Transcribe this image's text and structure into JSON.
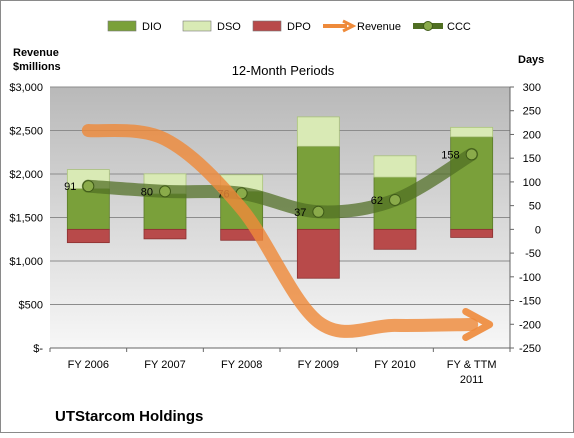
{
  "chart_data": {
    "type": "bar",
    "title": "12-Month Periods",
    "company": "UTStarcom Holdings",
    "left_axis_label_line1": "Revenue",
    "left_axis_label_line2": "$millions",
    "right_axis_label": "Days",
    "categories": [
      "FY 2006",
      "FY 2007",
      "FY 2008",
      "FY 2009",
      "FY 2010",
      "FY & TTM 2011"
    ],
    "left_ylim": [
      0,
      3000
    ],
    "left_ticks": [
      0,
      500,
      1000,
      1500,
      2000,
      2500,
      3000
    ],
    "left_tick_labels": [
      "$-",
      "$500",
      "$1,000",
      "$1,500",
      "$2,000",
      "$2,500",
      "$3,000"
    ],
    "right_ylim": [
      -250,
      300
    ],
    "right_ticks": [
      300,
      250,
      200,
      150,
      100,
      50,
      0,
      -50,
      -100,
      -150,
      -200,
      -250
    ],
    "right_tick_labels": [
      "300",
      "250",
      "200",
      "150",
      "100",
      "50",
      "0",
      "-50",
      "-100",
      "-150",
      "-200",
      "-250"
    ],
    "series": [
      {
        "name": "DIO",
        "kind": "bar-stack-positive",
        "values": [
          86,
          75,
          80,
          175,
          110,
          195
        ],
        "color": "#7aa03a"
      },
      {
        "name": "DSO",
        "kind": "bar-stack-positive",
        "values": [
          40,
          42,
          35,
          62,
          45,
          20
        ],
        "color": "#d9eab5"
      },
      {
        "name": "DPO",
        "kind": "bar-stack-negative",
        "values": [
          -28,
          -20,
          -23,
          -103,
          -42,
          -17
        ],
        "color": "#b84a4a"
      },
      {
        "name": "Revenue",
        "kind": "line",
        "axis": "left",
        "values": [
          2500,
          2400,
          1600,
          300,
          260,
          270
        ],
        "color": "#ee8a3a"
      },
      {
        "name": "CCC",
        "kind": "line",
        "axis": "right",
        "values": [
          91,
          80,
          76,
          37,
          62,
          158
        ],
        "labels": [
          "91",
          "80",
          "76",
          "37",
          "62",
          "158"
        ],
        "color": "#4f6e22"
      }
    ],
    "legend_position": "top",
    "grid": true
  }
}
